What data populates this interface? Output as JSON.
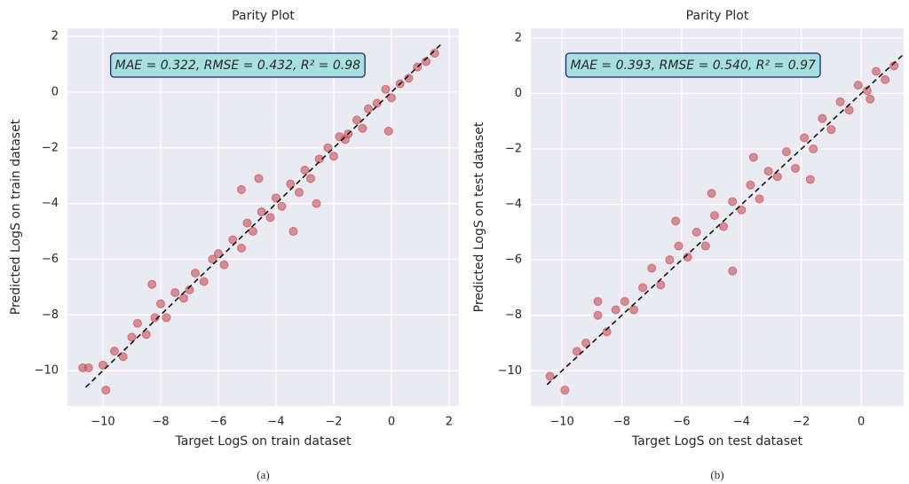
{
  "chart_data": [
    {
      "type": "scatter",
      "title": "Parity Plot",
      "x_label": "Target LogS on train dataset",
      "y_label": "Predicted LogS on train dataset",
      "annotation": "MAE = 0.322, RMSE = 0.432, R² = 0.98",
      "caption": "(a)",
      "color": "#c44e52",
      "grid": true,
      "xlim": [
        -11.23,
        2.34
      ],
      "ylim": [
        -11.27,
        2.29
      ],
      "xticks": [
        {
          "value": -10,
          "label": "−10"
        },
        {
          "value": -8,
          "label": "−8"
        },
        {
          "value": -6,
          "label": "−6"
        },
        {
          "value": -4,
          "label": "−4"
        },
        {
          "value": -2,
          "label": "−2"
        },
        0,
        2
      ],
      "yticks": [
        {
          "value": -10,
          "label": "−10"
        },
        {
          "value": -8,
          "label": "−8"
        },
        {
          "value": -6,
          "label": "−6"
        },
        {
          "value": -4,
          "label": "−4"
        },
        {
          "value": -2,
          "label": "−2"
        },
        0,
        2
      ],
      "parity_line": {
        "x": [
          -10.6,
          1.7
        ],
        "y": [
          -10.6,
          1.7
        ]
      },
      "x": [
        -10.7,
        -10.5,
        -10,
        -9.9,
        -9.6,
        -9.3,
        -9,
        -8.8,
        -8.5,
        -8.2,
        -8,
        -7.8,
        -7.5,
        -7.2,
        -7,
        -6.8,
        -6.5,
        -6.2,
        -6,
        -5.8,
        -5.5,
        -5.2,
        -5,
        -4.8,
        -4.5,
        -4.2,
        -4,
        -3.8,
        -3.5,
        -3.2,
        -3,
        -2.8,
        -2.5,
        -2.2,
        -2,
        -1.8,
        -1.5,
        -1.2,
        -1,
        -0.8,
        -0.5,
        -0.2,
        0,
        0.3,
        0.6,
        0.9,
        1.2,
        1.5,
        -5.2,
        -3.4,
        -1.6,
        -8.3,
        -4.6,
        -2.6,
        -0.1
      ],
      "values": [
        -9.9,
        -9.9,
        -9.8,
        -10.7,
        -9.3,
        -9.5,
        -8.8,
        -8.3,
        -8.7,
        -8.1,
        -7.6,
        -8.1,
        -7.2,
        -7.4,
        -7.1,
        -6.5,
        -6.8,
        -6.0,
        -5.8,
        -6.2,
        -5.3,
        -5.6,
        -4.7,
        -5.0,
        -4.3,
        -4.5,
        -3.8,
        -4.1,
        -3.3,
        -3.6,
        -2.8,
        -3.1,
        -2.4,
        -2.0,
        -2.3,
        -1.6,
        -1.5,
        -1.0,
        -1.3,
        -0.6,
        -0.4,
        0.1,
        -0.2,
        0.3,
        0.5,
        0.9,
        1.1,
        1.4,
        -3.5,
        -5.0,
        -1.7,
        -6.9,
        -3.1,
        -4.0,
        -1.4
      ]
    },
    {
      "type": "scatter",
      "title": "Parity Plot",
      "x_label": "Target LogS on test dataset",
      "y_label": "Predicted LogS on test dataset",
      "annotation": "MAE = 0.393, RMSE = 0.540, R² = 0.97",
      "caption": "(b)",
      "color": "#c44e52",
      "grid": true,
      "xlim": [
        -11.04,
        1.42
      ],
      "ylim": [
        -11.27,
        2.35
      ],
      "xticks": [
        {
          "value": -10,
          "label": "−10"
        },
        {
          "value": -8,
          "label": "−8"
        },
        {
          "value": -6,
          "label": "−6"
        },
        {
          "value": -4,
          "label": "−4"
        },
        {
          "value": -2,
          "label": "−2"
        },
        0
      ],
      "yticks": [
        {
          "value": -10,
          "label": "−10"
        },
        {
          "value": -8,
          "label": "−8"
        },
        {
          "value": -6,
          "label": "−6"
        },
        {
          "value": -4,
          "label": "−4"
        },
        {
          "value": -2,
          "label": "−2"
        },
        0,
        2
      ],
      "parity_line": {
        "x": [
          -10.5,
          1.4
        ],
        "y": [
          -10.5,
          1.4
        ]
      },
      "x": [
        -10.4,
        -9.9,
        -9.5,
        -9.2,
        -8.8,
        -8.5,
        -8.2,
        -7.9,
        -7.6,
        -7.3,
        -7,
        -6.7,
        -6.4,
        -6.1,
        -5.8,
        -5.5,
        -5.2,
        -4.9,
        -4.6,
        -4.3,
        -4,
        -3.7,
        -3.4,
        -3.1,
        -2.8,
        -2.5,
        -2.2,
        -1.9,
        -1.6,
        -1.3,
        -1,
        -0.7,
        -0.4,
        -0.1,
        0.2,
        0.5,
        0.8,
        1.1,
        -8.8,
        -6.2,
        -3.6,
        -4.3,
        -1.7,
        -5,
        0.3
      ],
      "values": [
        -10.2,
        -10.7,
        -9.3,
        -9.0,
        -8.0,
        -8.6,
        -7.8,
        -7.5,
        -7.8,
        -7.0,
        -6.3,
        -6.9,
        -6.0,
        -5.5,
        -5.9,
        -5.0,
        -5.5,
        -4.4,
        -4.8,
        -3.9,
        -4.2,
        -3.3,
        -3.8,
        -2.8,
        -3.0,
        -2.1,
        -2.7,
        -1.6,
        -2.0,
        -0.9,
        -1.3,
        -0.3,
        -0.6,
        0.3,
        0.1,
        0.8,
        0.5,
        1.0,
        -7.5,
        -4.6,
        -2.3,
        -6.4,
        -3.1,
        -3.6,
        -0.2
      ]
    }
  ]
}
